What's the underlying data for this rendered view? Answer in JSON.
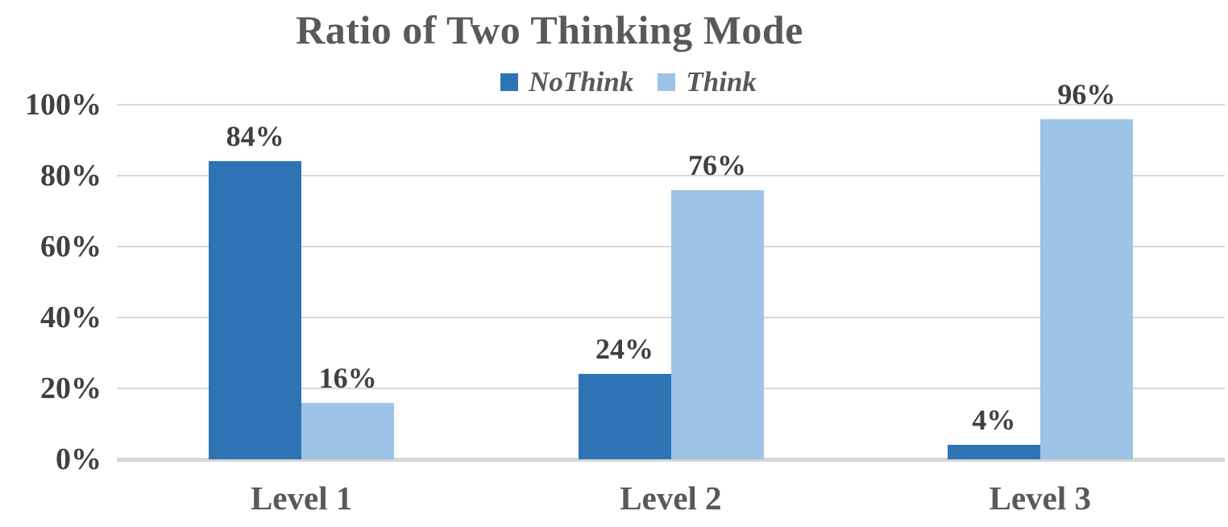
{
  "chart_data": {
    "type": "bar",
    "title": "Ratio of Two Thinking Mode",
    "categories": [
      "Level 1",
      "Level 2",
      "Level 3"
    ],
    "series": [
      {
        "name": "NoThink",
        "color": "#2E74B5",
        "values": [
          84,
          24,
          4
        ],
        "labels": [
          "84%",
          "24%",
          "4%"
        ]
      },
      {
        "name": "Think",
        "color": "#9DC3E6",
        "values": [
          16,
          76,
          96
        ],
        "labels": [
          "16%",
          "76%",
          "96%"
        ]
      }
    ],
    "y_axis": {
      "min": 0,
      "max": 100,
      "ticks": [
        {
          "label": "0%",
          "value": 0
        },
        {
          "label": "20%",
          "value": 20
        },
        {
          "label": "40%",
          "value": 40
        },
        {
          "label": "60%",
          "value": 60
        },
        {
          "label": "80%",
          "value": 80
        },
        {
          "label": "100%",
          "value": 100
        }
      ]
    },
    "legend": {
      "position": "top"
    },
    "grid": "horizontal",
    "colors": {
      "title_text": "#595959",
      "legend_text": "#595959",
      "y_tick_text": "#404040",
      "x_tick_text": "#595959",
      "data_label_text": "#404040",
      "gridline": "#D9D9D9",
      "baseline": "#D6D6D6",
      "background": "#FFFFFF"
    }
  }
}
